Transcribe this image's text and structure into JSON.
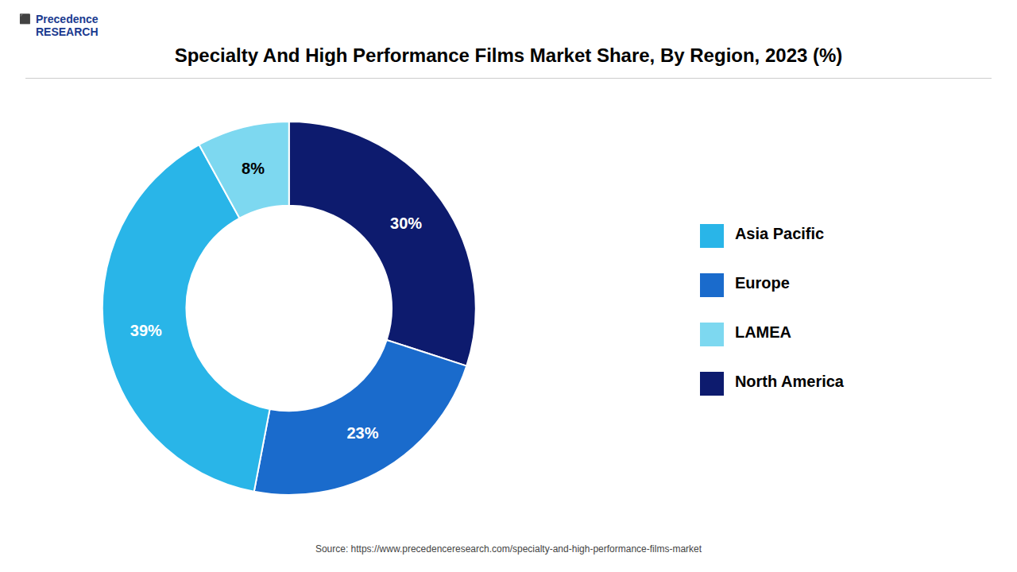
{
  "chart_data": {
    "type": "pie",
    "title": "Specialty And High Performance Films Market Share, By Region, 2023 (%)",
    "categories": [
      "North America",
      "Europe",
      "Asia Pacific",
      "LAMEA"
    ],
    "values": [
      30,
      23,
      39,
      8
    ],
    "value_labels": [
      "30%",
      "23%",
      "39%",
      "8%"
    ],
    "colors": [
      "#0d1b6e",
      "#1a6bcc",
      "#29b5e8",
      "#7dd8f0"
    ],
    "data_labels": true,
    "legend": "right",
    "annotations": [
      "Precedence\nRESEARCH",
      "⬛",
      "Source: https://www.precedenceresearch.com/specialty-and-high-performance-films-market"
    ]
  }
}
